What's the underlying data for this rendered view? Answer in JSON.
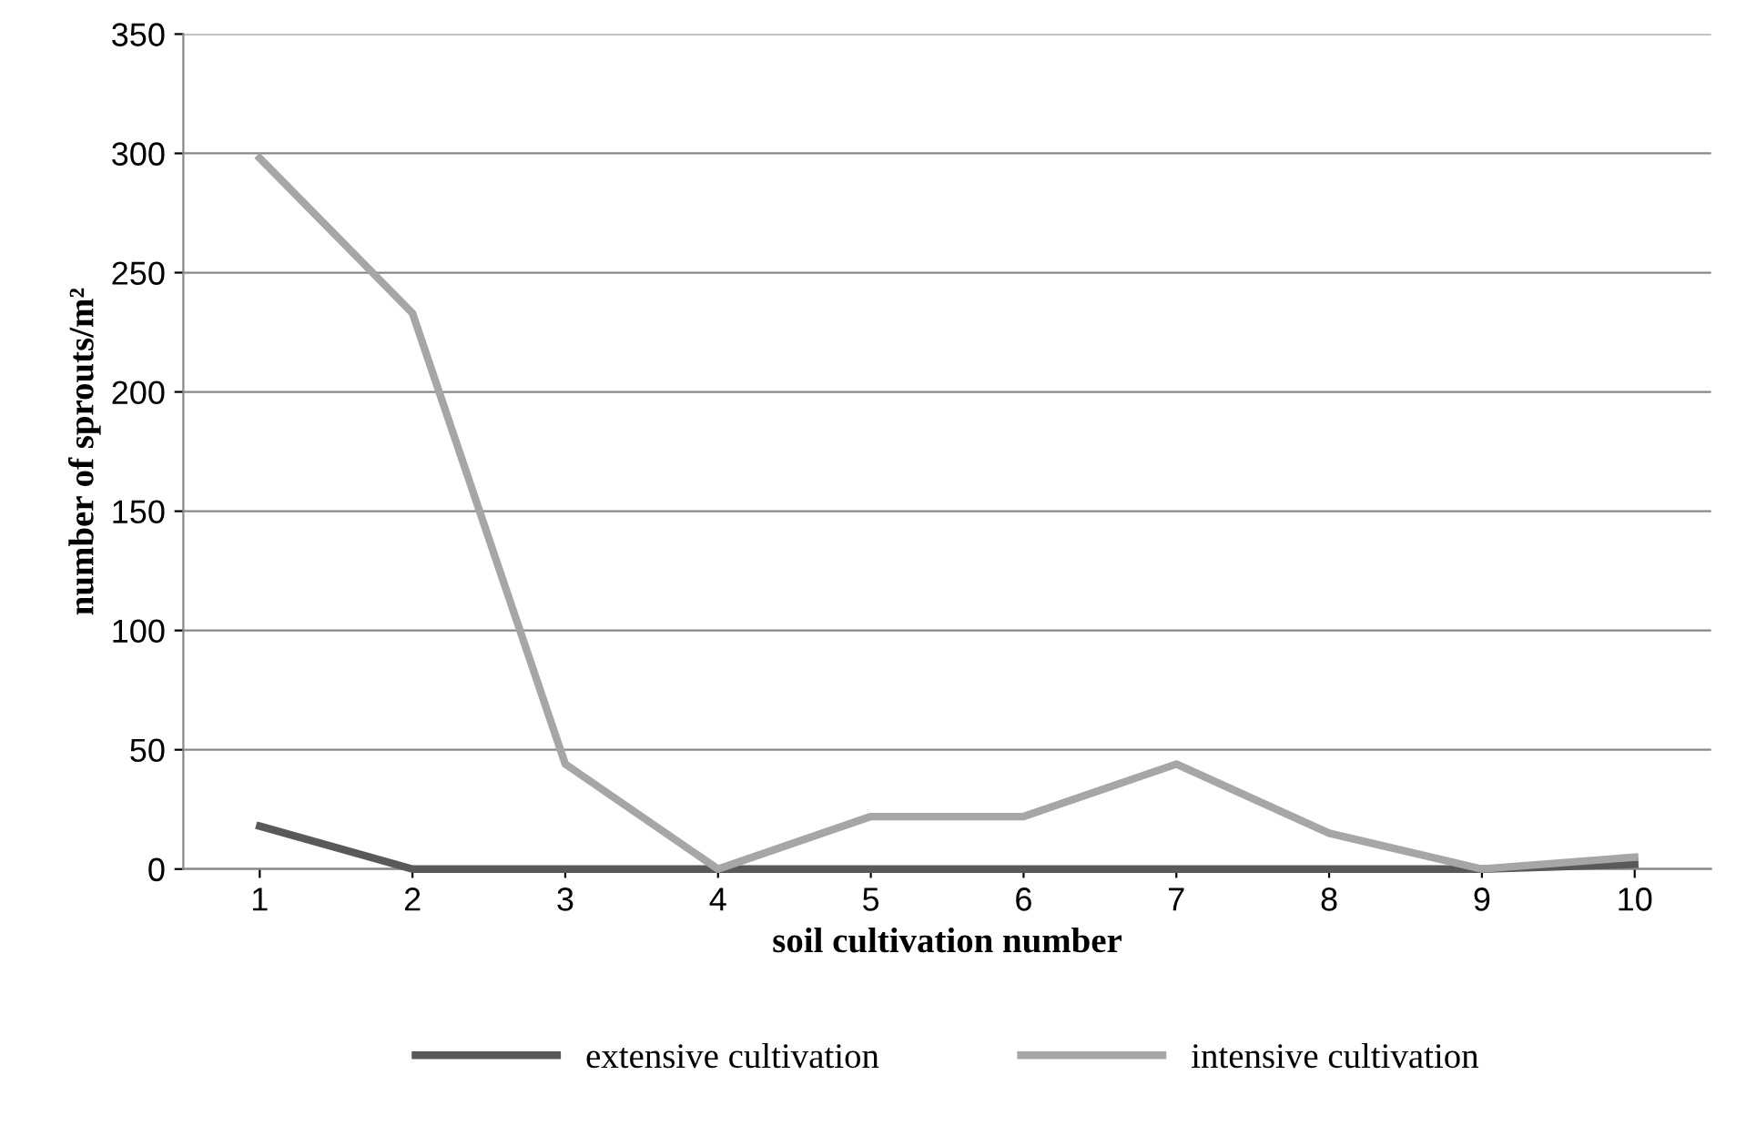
{
  "chart_data": {
    "type": "line",
    "xlabel": "soil cultivation number",
    "ylabel": "number of sprouts/m²",
    "categories": [
      "1",
      "2",
      "3",
      "4",
      "5",
      "6",
      "7",
      "8",
      "9",
      "10"
    ],
    "series": [
      {
        "name": "extensive cultivation",
        "color": "#595959",
        "values": [
          18,
          0,
          0,
          0,
          0,
          0,
          0,
          0,
          0,
          2
        ]
      },
      {
        "name": "intensive cultivation",
        "color": "#a6a6a6",
        "values": [
          298,
          233,
          44,
          0,
          22,
          22,
          44,
          15,
          0,
          5
        ]
      }
    ],
    "ylim": [
      0,
      350
    ],
    "yticks": [
      0,
      50,
      100,
      150,
      200,
      250,
      300,
      350
    ],
    "grid": "y",
    "legend": "bottom",
    "marker": "none",
    "line_style": "solid"
  }
}
